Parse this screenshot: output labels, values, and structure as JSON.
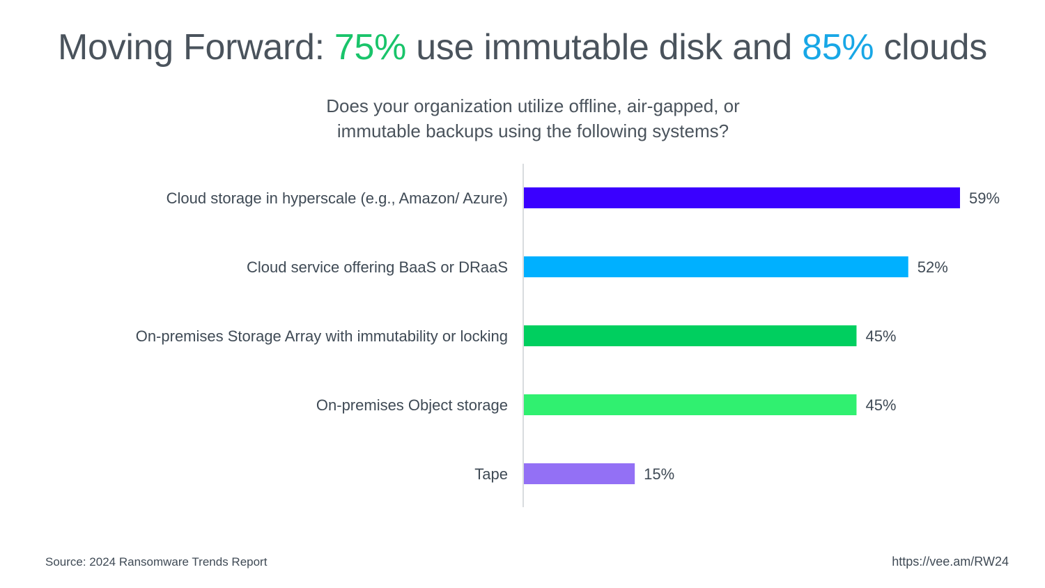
{
  "title": {
    "part1": "Moving Forward: ",
    "hl1": "75%",
    "part2": " use immutable disk and ",
    "hl2": "85%",
    "part3": " clouds",
    "hl1_color": "#19c46a",
    "hl2_color": "#18a7e6"
  },
  "subtitle": {
    "line1": "Does your organization utilize offline, air-gapped, or",
    "line2": "immutable backups using the following systems?"
  },
  "chart_data": {
    "type": "bar",
    "orientation": "horizontal",
    "categories": [
      "Cloud storage in hyperscale (e.g., Amazon/ Azure)",
      "Cloud service offering BaaS or DRaaS",
      "On-premises Storage Array with immutability or locking",
      "On-premises Object storage",
      "Tape"
    ],
    "values": [
      59,
      52,
      45,
      45,
      15
    ],
    "value_labels": [
      "59%",
      "52%",
      "45%",
      "45%",
      "15%"
    ],
    "colors": [
      "#3a00ff",
      "#00b0ff",
      "#00cf5f",
      "#30f070",
      "#9370f5"
    ],
    "xlim": [
      0,
      60
    ],
    "grid": false,
    "legend": "none"
  },
  "footer": {
    "source": "Source: 2024 Ransomware Trends Report",
    "url": "https://vee.am/RW24"
  }
}
